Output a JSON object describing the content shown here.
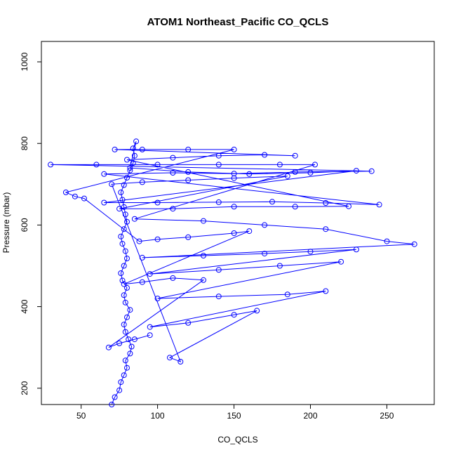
{
  "chart_data": {
    "type": "scatter",
    "title": "ATOM1 Northeast_Pacific CO_QCLS",
    "xlabel": "CO_QCLS",
    "ylabel": "Pressure (mbar)",
    "xlim": [
      24,
      281
    ],
    "ylim": [
      1050,
      160
    ],
    "y_reversed": true,
    "x_ticks": [
      50,
      100,
      150,
      200,
      250
    ],
    "y_ticks": [
      200,
      400,
      600,
      800,
      1000
    ],
    "grid": false,
    "legend": "none",
    "colors": {
      "series": "#0000ff",
      "axis": "#000000"
    },
    "series": [
      {
        "marker": "open-circle",
        "line": true,
        "points": [
          [
            70,
            160
          ],
          [
            72,
            178
          ],
          [
            75,
            195
          ],
          [
            76,
            215
          ],
          [
            78,
            232
          ],
          [
            80,
            250
          ],
          [
            79,
            268
          ],
          [
            82,
            285
          ],
          [
            83,
            302
          ],
          [
            81,
            320
          ],
          [
            79,
            338
          ],
          [
            78,
            356
          ],
          [
            80,
            374
          ],
          [
            82,
            392
          ],
          [
            79,
            410
          ],
          [
            78,
            428
          ],
          [
            80,
            446
          ],
          [
            77,
            464
          ],
          [
            76,
            482
          ],
          [
            78,
            500
          ],
          [
            80,
            518
          ],
          [
            79,
            536
          ],
          [
            77,
            554
          ],
          [
            76,
            572
          ],
          [
            78,
            590
          ],
          [
            80,
            608
          ],
          [
            79,
            626
          ],
          [
            78,
            644
          ],
          [
            77,
            662
          ],
          [
            76,
            680
          ],
          [
            78,
            698
          ],
          [
            80,
            716
          ],
          [
            82,
            734
          ],
          [
            84,
            752
          ],
          [
            85,
            770
          ],
          [
            84,
            788
          ],
          [
            86,
            805
          ],
          [
            82,
            740
          ],
          [
            120,
            730
          ],
          [
            160,
            725
          ],
          [
            200,
            728
          ],
          [
            230,
            733
          ],
          [
            65,
            655
          ],
          [
            100,
            655
          ],
          [
            140,
            656
          ],
          [
            175,
            657
          ],
          [
            210,
            654
          ],
          [
            245,
            650
          ],
          [
            65,
            725
          ],
          [
            110,
            728
          ],
          [
            150,
            726
          ],
          [
            190,
            730
          ],
          [
            240,
            732
          ],
          [
            30,
            748
          ],
          [
            60,
            748
          ],
          [
            100,
            748
          ],
          [
            140,
            748
          ],
          [
            180,
            748
          ],
          [
            203,
            748
          ],
          [
            85,
            615
          ],
          [
            130,
            610
          ],
          [
            170,
            600
          ],
          [
            210,
            590
          ],
          [
            250,
            560
          ],
          [
            268,
            553
          ],
          [
            90,
            520
          ],
          [
            130,
            525
          ],
          [
            170,
            530
          ],
          [
            200,
            535
          ],
          [
            230,
            540
          ],
          [
            95,
            480
          ],
          [
            140,
            490
          ],
          [
            180,
            500
          ],
          [
            220,
            510
          ],
          [
            100,
            420
          ],
          [
            140,
            425
          ],
          [
            185,
            430
          ],
          [
            210,
            438
          ],
          [
            95,
            350
          ],
          [
            120,
            360
          ],
          [
            150,
            380
          ],
          [
            165,
            390
          ],
          [
            108,
            275
          ],
          [
            115,
            265
          ],
          [
            70,
            700
          ],
          [
            90,
            705
          ],
          [
            120,
            710
          ],
          [
            150,
            715
          ],
          [
            185,
            720
          ],
          [
            75,
            640
          ],
          [
            110,
            640
          ],
          [
            150,
            645
          ],
          [
            190,
            645
          ],
          [
            225,
            646
          ],
          [
            80,
            760
          ],
          [
            110,
            765
          ],
          [
            140,
            770
          ],
          [
            170,
            772
          ],
          [
            190,
            770
          ],
          [
            72,
            785
          ],
          [
            90,
            785
          ],
          [
            120,
            785
          ],
          [
            150,
            785
          ],
          [
            40,
            680
          ],
          [
            46,
            670
          ],
          [
            52,
            665
          ],
          [
            88,
            560
          ],
          [
            100,
            565
          ],
          [
            120,
            570
          ],
          [
            150,
            580
          ],
          [
            160,
            585
          ],
          [
            78,
            455
          ],
          [
            90,
            460
          ],
          [
            110,
            470
          ],
          [
            130,
            465
          ],
          [
            68,
            300
          ],
          [
            75,
            310
          ],
          [
            85,
            320
          ],
          [
            95,
            330
          ]
        ]
      }
    ]
  }
}
